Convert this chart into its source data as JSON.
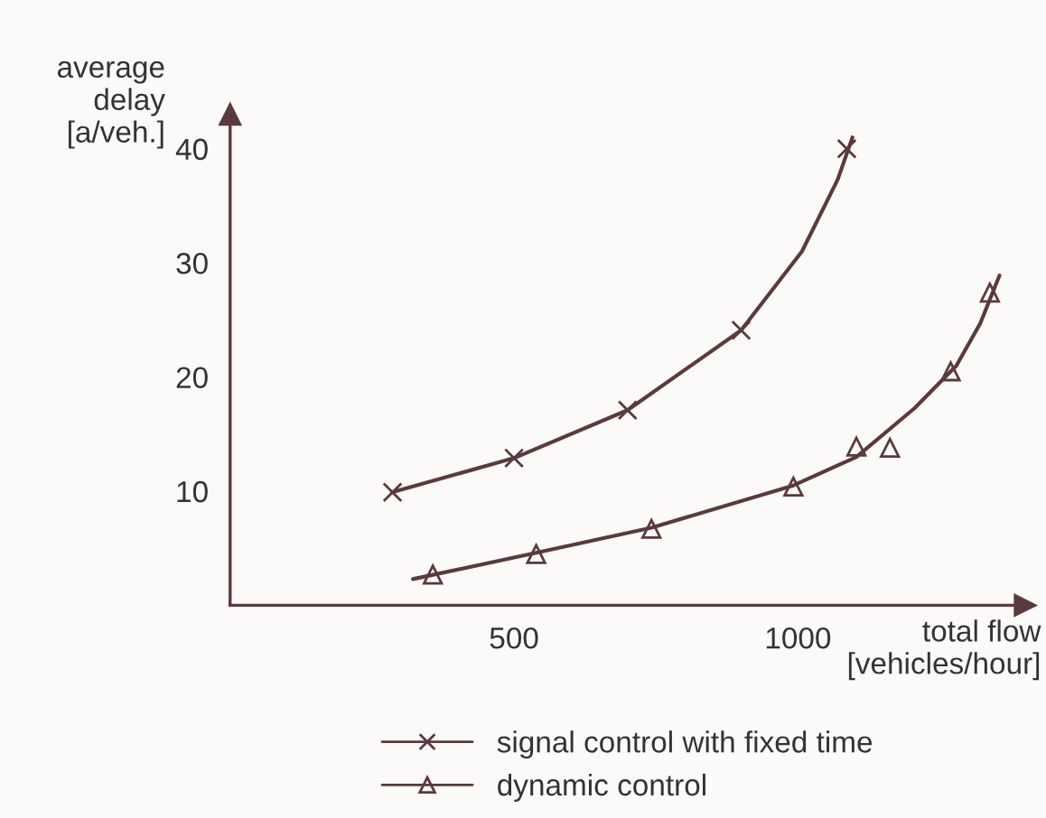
{
  "chart_data": {
    "type": "scatter",
    "xlabel": "total flow\n[vehicles/hour]",
    "ylabel": "average\ndelay\n[a/veh.]",
    "xlim": [
      0,
      1400
    ],
    "ylim": [
      0,
      43
    ],
    "xticks": [
      500,
      1000
    ],
    "yticks": [
      10,
      20,
      30,
      40
    ],
    "grid": false,
    "legend": "bottom",
    "series": [
      {
        "name": "signal control with fixed time",
        "marker": "cross",
        "color": "#5a3a3e",
        "x": [
          286,
          500,
          700,
          900,
          1086
        ],
        "values": [
          9.9,
          12.9,
          17.1,
          24.1,
          40
        ]
      },
      {
        "name": "dynamic control",
        "marker": "triangle",
        "color": "#5a3a3e",
        "x": [
          357,
          539,
          742,
          992,
          1103,
          1162,
          1269,
          1338
        ],
        "values": [
          2.7,
          4.5,
          6.7,
          10.4,
          13.9,
          13.8,
          20.5,
          27.4
        ]
      },
      {
        "type": "line",
        "marker": "none",
        "line_style": "solid",
        "color": "#5a3a3e",
        "x": [
          285,
          500,
          700,
          900,
          1007,
          1070,
          1096
        ],
        "values": [
          9.9,
          12.9,
          17.1,
          24.1,
          31.0,
          37.3,
          41
        ]
      },
      {
        "type": "line",
        "marker": "none",
        "line_style": "solid",
        "color": "#5a3a3e",
        "x": [
          322,
          539,
          742,
          992,
          1103,
          1206,
          1279,
          1321,
          1355
        ],
        "values": [
          2.3,
          4.6,
          6.8,
          10.5,
          13.0,
          17.3,
          21.0,
          24.7,
          28.9
        ]
      }
    ]
  }
}
